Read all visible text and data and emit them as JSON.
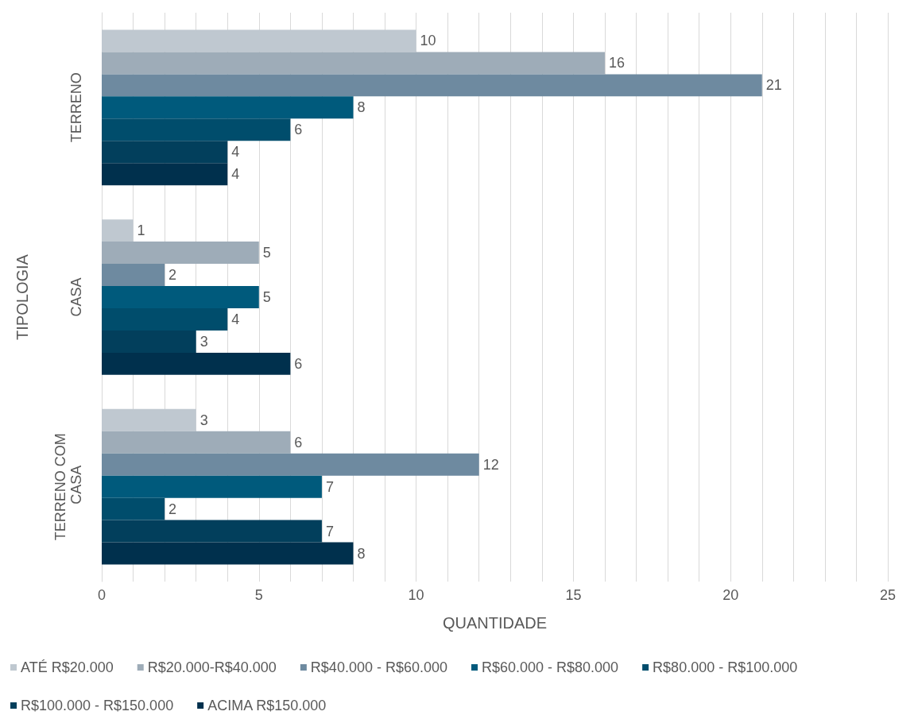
{
  "chart_data": {
    "type": "bar",
    "orientation": "horizontal",
    "xlabel": "QUANTIDADE",
    "ylabel": "TIPOLOGIA",
    "categories": [
      "TERRENO",
      "CASA",
      "TERRENO COM CASA"
    ],
    "series": [
      {
        "name": "ATÉ R$20.000",
        "color": "#bfc8d0",
        "values": [
          10,
          1,
          3
        ]
      },
      {
        "name": "R$20.000-R$40.000",
        "color": "#9eacb8",
        "values": [
          16,
          5,
          6
        ]
      },
      {
        "name": "R$40.000 - R$60.000",
        "color": "#6e8aa0",
        "values": [
          21,
          2,
          12
        ]
      },
      {
        "name": "R$60.000 - R$80.000",
        "color": "#005a7c",
        "values": [
          8,
          5,
          7
        ]
      },
      {
        "name": "R$80.000 - R$100.000",
        "color": "#004d6c",
        "values": [
          6,
          4,
          2
        ]
      },
      {
        "name": "R$100.000 - R$150.000",
        "color": "#023f5c",
        "values": [
          4,
          3,
          7
        ]
      },
      {
        "name": "ACIMA R$150.000",
        "color": "#00304d",
        "values": [
          4,
          6,
          8
        ]
      }
    ],
    "xlim": [
      0,
      25
    ],
    "xticks": [
      0,
      {
        "value": 1,
        "label": null
      },
      {
        "value": 2,
        "label": null
      },
      {
        "value": 3,
        "label": null
      },
      {
        "value": 4,
        "label": null
      },
      5,
      {
        "value": 6,
        "label": null
      },
      {
        "value": 7,
        "label": null
      },
      {
        "value": 8,
        "label": null
      },
      {
        "value": 9,
        "label": null
      },
      10,
      {
        "value": 11,
        "label": null
      },
      {
        "value": 12,
        "label": null
      },
      {
        "value": 13,
        "label": null
      },
      {
        "value": 14,
        "label": null
      },
      15,
      {
        "value": 16,
        "label": null
      },
      {
        "value": 17,
        "label": null
      },
      {
        "value": 18,
        "label": null
      },
      {
        "value": 19,
        "label": null
      },
      20,
      {
        "value": 21,
        "label": null
      },
      {
        "value": 22,
        "label": null
      },
      {
        "value": 23,
        "label": null
      },
      {
        "value": 24,
        "label": null
      },
      25
    ],
    "grid": "x",
    "legend": "bottom",
    "data_labels": true
  }
}
